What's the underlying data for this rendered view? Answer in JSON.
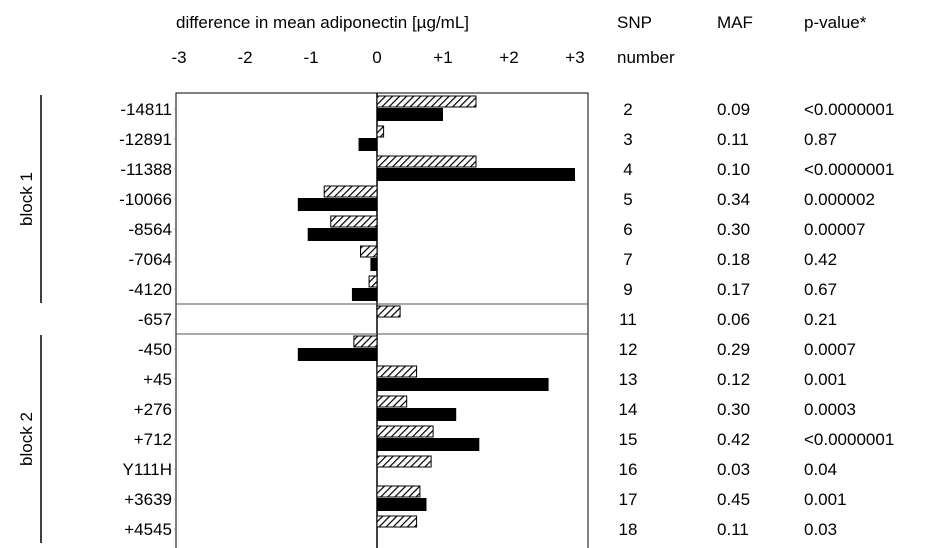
{
  "chart_data": {
    "type": "bar",
    "orientation": "horizontal",
    "title": "difference in mean adiponectin [µg/mL]",
    "xlim": [
      -3,
      3
    ],
    "x_ticks": [
      "-3",
      "-2",
      "-1",
      "0",
      "+1",
      "+2",
      "+3"
    ],
    "bar_styles": [
      "hatched",
      "solid"
    ],
    "table_headers": {
      "snp_line1": "SNP",
      "snp_line2": "number",
      "maf": "MAF",
      "pvalue": "p-value*"
    },
    "blocks": [
      {
        "label": "block 1",
        "from_row": 0,
        "to_row": 6
      },
      {
        "label": "block 2",
        "from_row": 8,
        "to_row": 14
      }
    ],
    "separated_row": 7,
    "rows": [
      {
        "label": "-14811",
        "hatched": 1.5,
        "solid": 1.0,
        "snp": "2",
        "maf": "0.09",
        "pvalue": "<0.0000001"
      },
      {
        "label": "-12891",
        "hatched": 0.1,
        "solid": -0.28,
        "snp": "3",
        "maf": "0.11",
        "pvalue": "0.87"
      },
      {
        "label": "-11388",
        "hatched": 1.5,
        "solid": 3.0,
        "snp": "4",
        "maf": "0.10",
        "pvalue": "<0.0000001"
      },
      {
        "label": "-10066",
        "hatched": -0.8,
        "solid": -1.2,
        "snp": "5",
        "maf": "0.34",
        "pvalue": "0.000002"
      },
      {
        "label": "-8564",
        "hatched": -0.7,
        "solid": -1.05,
        "snp": "6",
        "maf": "0.30",
        "pvalue": "0.00007"
      },
      {
        "label": "-7064",
        "hatched": -0.25,
        "solid": -0.1,
        "snp": "7",
        "maf": "0.18",
        "pvalue": "0.42"
      },
      {
        "label": "-4120",
        "hatched": -0.12,
        "solid": -0.38,
        "snp": "9",
        "maf": "0.17",
        "pvalue": "0.67"
      },
      {
        "label": "-657",
        "hatched": 0.35,
        "solid": 0,
        "snp": "11",
        "maf": "0.06",
        "pvalue": "0.21"
      },
      {
        "label": "-450",
        "hatched": -0.35,
        "solid": -1.2,
        "snp": "12",
        "maf": "0.29",
        "pvalue": "0.0007"
      },
      {
        "label": "+45",
        "hatched": 0.6,
        "solid": 2.6,
        "snp": "13",
        "maf": "0.12",
        "pvalue": "0.001"
      },
      {
        "label": "+276",
        "hatched": 0.45,
        "solid": 1.2,
        "snp": "14",
        "maf": "0.30",
        "pvalue": "0.0003"
      },
      {
        "label": "+712",
        "hatched": 0.85,
        "solid": 1.55,
        "snp": "15",
        "maf": "0.42",
        "pvalue": "<0.0000001"
      },
      {
        "label": "Y111H",
        "hatched": 0.82,
        "solid": 0,
        "snp": "16",
        "maf": "0.03",
        "pvalue": "0.04"
      },
      {
        "label": "+3639",
        "hatched": 0.65,
        "solid": 0.75,
        "snp": "17",
        "maf": "0.45",
        "pvalue": "0.001"
      },
      {
        "label": "+4545",
        "hatched": 0.6,
        "solid": 0,
        "snp": "18",
        "maf": "0.11",
        "pvalue": "0.03"
      }
    ]
  }
}
